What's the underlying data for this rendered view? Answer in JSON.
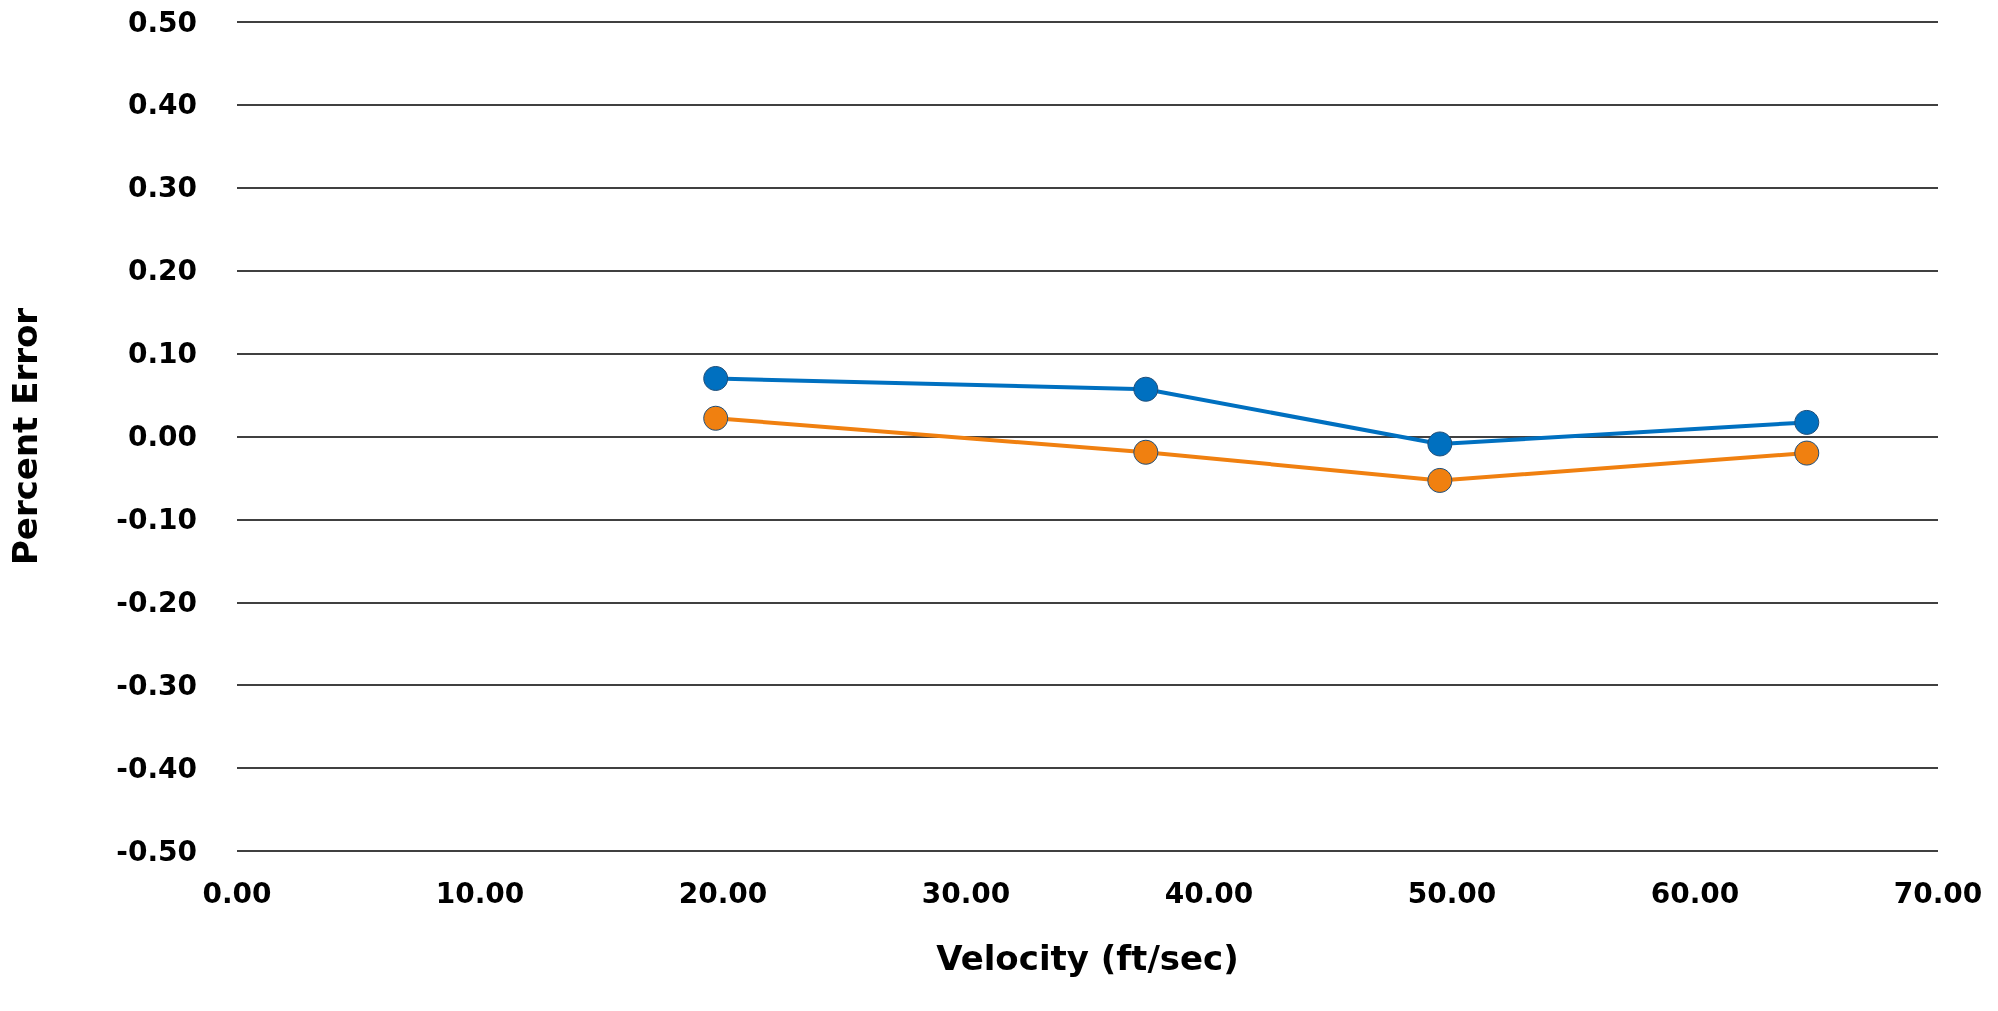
{
  "chart_data": {
    "type": "line",
    "xlabel": "Velocity (ft/sec)",
    "ylabel": "Percent Error",
    "series": [
      {
        "color": "#0070c0",
        "x": [
          19.7,
          37.4,
          49.5,
          64.6
        ],
        "values": [
          0.07,
          0.057,
          -0.009,
          0.017
        ]
      },
      {
        "color": "#f08010",
        "x": [
          19.7,
          37.4,
          49.5,
          64.6
        ],
        "values": [
          0.022,
          -0.019,
          -0.053,
          -0.02
        ]
      }
    ],
    "xlim": [
      0,
      70
    ],
    "xticks": [
      {
        "value": 0,
        "label": "0.00"
      },
      {
        "value": 10,
        "label": "10.00"
      },
      {
        "value": 20,
        "label": "20.00"
      },
      {
        "value": 30,
        "label": "30.00"
      },
      {
        "value": 40,
        "label": "40.00"
      },
      {
        "value": 50,
        "label": "50.00"
      },
      {
        "value": 60,
        "label": "60.00"
      },
      {
        "value": 70,
        "label": "70.00"
      }
    ],
    "ylim": [
      -0.5,
      0.5
    ],
    "yticks": [
      {
        "value": -0.5,
        "label": "-0.50"
      },
      {
        "value": -0.4,
        "label": "-0.40"
      },
      {
        "value": -0.3,
        "label": "-0.30"
      },
      {
        "value": -0.2,
        "label": "-0.20"
      },
      {
        "value": -0.1,
        "label": "-0.10"
      },
      {
        "value": 0,
        "label": "0.00"
      },
      {
        "value": 0.1,
        "label": "0.10"
      },
      {
        "value": 0.2,
        "label": "0.20"
      },
      {
        "value": 0.3,
        "label": "0.30"
      },
      {
        "value": 0.4,
        "label": "0.40"
      },
      {
        "value": 0.5,
        "label": "0.50"
      }
    ],
    "grid": "y",
    "marker": "circle",
    "line_style": "solid"
  }
}
